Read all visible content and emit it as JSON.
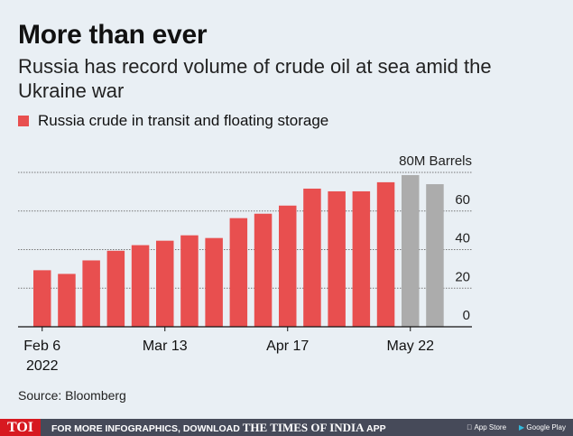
{
  "title": "More than ever",
  "subtitle": "Russia has record volume of crude oil at sea amid the Ukraine war",
  "source": "Source: Bloomberg",
  "footer": {
    "brand": "TOI",
    "text": "FOR MORE INFOGRAPHICS, DOWNLOAD",
    "paper": "THE TIMES OF INDIA",
    "app": "APP",
    "app_store": "App Store",
    "google_play": "Google Play"
  },
  "chart_data": {
    "type": "bar",
    "legend": [
      "Russia crude in transit and floating storage"
    ],
    "unit_label": "80M Barrels",
    "yticks": [
      "0",
      "20",
      "40",
      "60"
    ],
    "ylim": [
      0,
      80
    ],
    "xtick_labels": [
      {
        "index": 0,
        "label": "Feb 6",
        "sub": "2022"
      },
      {
        "index": 5,
        "label": "Mar 13"
      },
      {
        "index": 10,
        "label": "Apr 17"
      },
      {
        "index": 15,
        "label": "May 22"
      }
    ],
    "values": [
      29.3,
      27.4,
      34.4,
      39.4,
      42.3,
      44.6,
      47.4,
      46,
      56.3,
      58.6,
      62.8,
      71.6,
      70.2,
      70.2,
      74.9,
      78.6,
      73.9
    ],
    "highlight_gray_from": 15,
    "colors": {
      "main": "#e84f4f",
      "gray": "#acacac"
    }
  }
}
